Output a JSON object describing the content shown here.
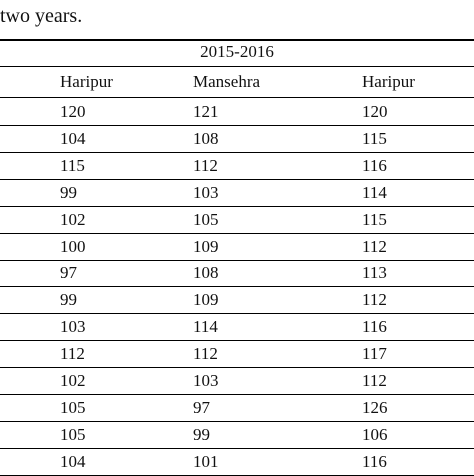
{
  "caption": "two years.",
  "table": {
    "group_header": "2015-2016",
    "columns": [
      "Haripur",
      "Mansehra",
      "Haripur"
    ],
    "rows": [
      [
        "120",
        "121",
        "120"
      ],
      [
        "104",
        "108",
        "115"
      ],
      [
        "115",
        "112",
        "116"
      ],
      [
        "99",
        "103",
        "114"
      ],
      [
        "102",
        "105",
        "115"
      ],
      [
        "100",
        "109",
        "112"
      ],
      [
        "97",
        "108",
        "113"
      ],
      [
        "99",
        "109",
        "112"
      ],
      [
        "103",
        "114",
        "116"
      ],
      [
        "112",
        "112",
        "117"
      ],
      [
        "102",
        "103",
        "112"
      ],
      [
        "105",
        "97",
        "126"
      ],
      [
        "105",
        "99",
        "106"
      ],
      [
        "104",
        "101",
        "116"
      ]
    ]
  }
}
